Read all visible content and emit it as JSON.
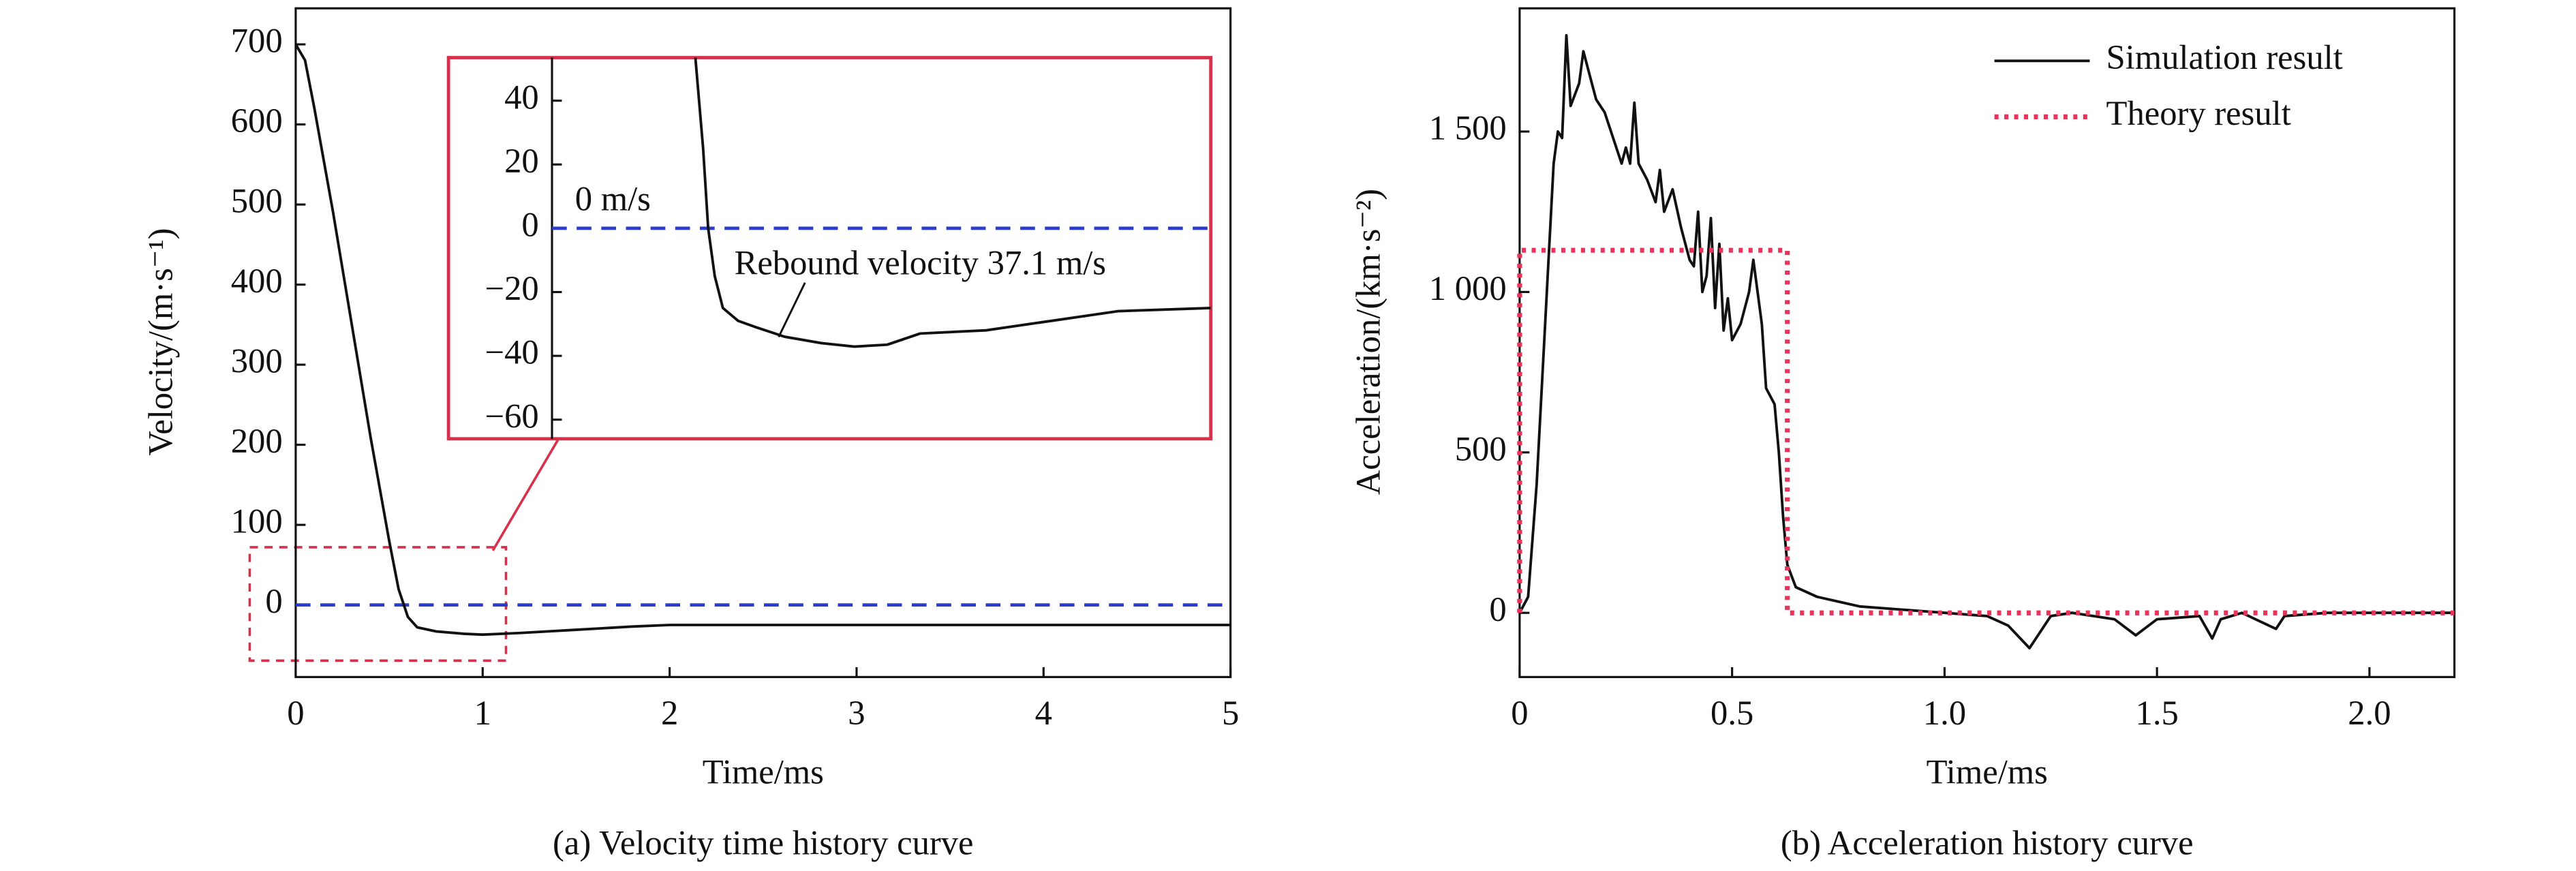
{
  "chart_data": [
    {
      "type": "line",
      "xlabel": "Time/ms",
      "ylabel": "Velocity/(m·s⁻¹)",
      "caption": "(a) Velocity time history curve",
      "xlim": [
        0,
        5
      ],
      "ylim": [
        -90,
        745
      ],
      "xticks": [
        0,
        1,
        2,
        3,
        4,
        5
      ],
      "yticks": [
        0,
        100,
        200,
        300,
        400,
        500,
        600,
        700
      ],
      "hline": {
        "value": 0,
        "color": "#2a3ccc"
      },
      "series": [
        {
          "color": "#111111",
          "x": [
            0,
            0.05,
            0.1,
            0.2,
            0.3,
            0.4,
            0.5,
            0.55,
            0.6,
            0.65,
            0.75,
            0.9,
            1.0,
            1.2,
            1.5,
            1.8,
            2.0,
            3.0,
            4.0,
            5.0
          ],
          "values": [
            700,
            680,
            620,
            490,
            350,
            210,
            80,
            20,
            -15,
            -28,
            -33,
            -36,
            -37.1,
            -35,
            -31,
            -27,
            -25,
            -25,
            -25,
            -25
          ]
        }
      ]
    },
    {
      "type": "line",
      "xlim": [
        0.3,
        2.0
      ],
      "ylim": [
        -66,
        53.5
      ],
      "yticks": [
        {
          "value": -60,
          "label": "−60"
        },
        {
          "value": -40,
          "label": "−40"
        },
        {
          "value": -20,
          "label": "−20"
        },
        0,
        20,
        40
      ],
      "hline": {
        "value": 0,
        "color": "#2a3ccc"
      },
      "annotations": [
        "0 m/s",
        "Rebound velocity 37.1 m/s"
      ],
      "series": [
        {
          "color": "#111111",
          "x": [
            0.67,
            0.69,
            0.703,
            0.72,
            0.741,
            0.78,
            0.826,
            0.9,
            0.995,
            1.08,
            1.165,
            1.25,
            1.42,
            1.59,
            1.76,
            2.0
          ],
          "values": [
            53.5,
            25,
            0,
            -15,
            -25,
            -29,
            -31,
            -34,
            -36,
            -37.1,
            -36.5,
            -33,
            -32,
            -29,
            -26,
            -25
          ]
        }
      ]
    },
    {
      "type": "line",
      "xlabel": "Time/ms",
      "ylabel": "Acceleration/(km·s⁻²)",
      "caption": "(b) Acceleration history curve",
      "xlim": [
        0,
        2.2
      ],
      "ylim": [
        -200,
        1884
      ],
      "xticks": [
        0,
        0.5,
        {
          "value": 1,
          "label": "1.0"
        },
        1.5,
        {
          "value": 2,
          "label": "2.0"
        }
      ],
      "yticks": [
        0,
        500,
        {
          "value": 1000,
          "label": "1 000"
        },
        {
          "value": 1500,
          "label": "1 500"
        }
      ],
      "legend": "upper right",
      "series": [
        {
          "name": "Simulation result",
          "color": "#111111",
          "dash": "solid",
          "x": [
            0,
            0.02,
            0.04,
            0.06,
            0.08,
            0.09,
            0.1,
            0.11,
            0.12,
            0.14,
            0.15,
            0.16,
            0.18,
            0.2,
            0.22,
            0.24,
            0.25,
            0.26,
            0.27,
            0.28,
            0.3,
            0.32,
            0.33,
            0.34,
            0.36,
            0.38,
            0.4,
            0.41,
            0.42,
            0.43,
            0.44,
            0.45,
            0.46,
            0.47,
            0.48,
            0.49,
            0.5,
            0.52,
            0.54,
            0.55,
            0.57,
            0.58,
            0.6,
            0.61,
            0.62,
            0.63,
            0.65,
            0.7,
            0.8,
            0.9,
            1.0,
            1.1,
            1.15,
            1.2,
            1.25,
            1.3,
            1.4,
            1.45,
            1.5,
            1.6,
            1.63,
            1.65,
            1.7,
            1.78,
            1.8,
            1.9,
            2.0,
            2.2
          ],
          "values": [
            0,
            50,
            400,
            900,
            1400,
            1500,
            1480,
            1800,
            1580,
            1650,
            1750,
            1700,
            1600,
            1560,
            1480,
            1400,
            1450,
            1400,
            1590,
            1400,
            1350,
            1280,
            1380,
            1250,
            1320,
            1200,
            1100,
            1080,
            1250,
            1000,
            1050,
            1230,
            950,
            1150,
            880,
            980,
            850,
            900,
            1000,
            1100,
            900,
            700,
            650,
            500,
            300,
            150,
            80,
            50,
            20,
            10,
            0,
            -10,
            -40,
            -110,
            -10,
            0,
            -20,
            -70,
            -20,
            -10,
            -80,
            -20,
            0,
            -50,
            -10,
            0,
            0,
            0
          ]
        },
        {
          "name": "Theory result",
          "color": "#e8345a",
          "dash": "dotted",
          "x": [
            0,
            0,
            0.63,
            0.63,
            2.2
          ],
          "values": [
            0,
            1130,
            1130,
            0,
            0
          ]
        }
      ]
    }
  ]
}
